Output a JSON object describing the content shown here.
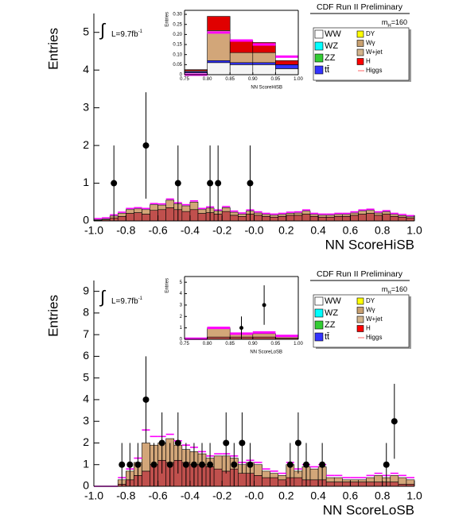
{
  "chart_data": [
    {
      "type": "histogram",
      "title": "CDF Run II Preliminary",
      "xlabel": "NN ScoreHiSB",
      "ylabel": "Entries",
      "integral": "∫",
      "lumi": {
        "text": "L=9.7fb",
        "superscript": "-1"
      },
      "mass": {
        "symbol": "m",
        "subscript": "H",
        "text": "=160"
      },
      "legend": [
        {
          "name": "WW",
          "color": "#ffffff"
        },
        {
          "name": "WZ",
          "color": "#00ffff"
        },
        {
          "name": "ZZ",
          "color": "#33cc33"
        },
        {
          "name": "tt̄",
          "color": "#3333ff"
        },
        {
          "name": "DY",
          "color": "#ffff00"
        },
        {
          "name": "Wγ",
          "color": "#c8a070"
        },
        {
          "name": "W+jet",
          "color": "#d2b48c"
        },
        {
          "name": "H",
          "color": "#ff0000"
        },
        {
          "name": "Higgs",
          "color": "#ff6666"
        }
      ],
      "bins": [
        -1.0,
        -0.95,
        -0.9,
        -0.85,
        -0.8,
        -0.75,
        -0.7,
        -0.65,
        -0.6,
        -0.55,
        -0.5,
        -0.45,
        -0.4,
        -0.35,
        -0.3,
        -0.25,
        -0.2,
        -0.15,
        -0.1,
        -0.05,
        0,
        0.05,
        0.1,
        0.15,
        0.2,
        0.25,
        0.3,
        0.35,
        0.4,
        0.45,
        0.5,
        0.55,
        0.6,
        0.65,
        0.7,
        0.75,
        0.8,
        0.85,
        0.9,
        0.95,
        1.0
      ],
      "series": [
        {
          "color": "#c0504d",
          "values": [
            0.02,
            0.03,
            0.08,
            0.12,
            0.2,
            0.22,
            0.18,
            0.28,
            0.3,
            0.35,
            0.3,
            0.25,
            0.3,
            0.2,
            0.22,
            0.18,
            0.25,
            0.15,
            0.12,
            0.18,
            0.15,
            0.12,
            0.1,
            0.12,
            0.15,
            0.15,
            0.18,
            0.12,
            0.1,
            0.1,
            0.12,
            0.12,
            0.15,
            0.18,
            0.2,
            0.15,
            0.18,
            0.12,
            0.1,
            0.08
          ]
        },
        {
          "color": "#d2a679",
          "values": [
            0.01,
            0.02,
            0.05,
            0.08,
            0.1,
            0.1,
            0.12,
            0.15,
            0.12,
            0.2,
            0.15,
            0.15,
            0.2,
            0.1,
            0.12,
            0.08,
            0.1,
            0.08,
            0.06,
            0.08,
            0.06,
            0.05,
            0.05,
            0.05,
            0.05,
            0.06,
            0.08,
            0.05,
            0.05,
            0.05,
            0.05,
            0.05,
            0.06,
            0.08,
            0.08,
            0.06,
            0.06,
            0.05,
            0.04,
            0.03
          ]
        }
      ],
      "signal": {
        "color": "#ff00ff",
        "values": [
          0.06,
          0.08,
          0.16,
          0.23,
          0.33,
          0.35,
          0.33,
          0.46,
          0.45,
          0.58,
          0.48,
          0.43,
          0.53,
          0.33,
          0.37,
          0.29,
          0.38,
          0.26,
          0.21,
          0.29,
          0.24,
          0.2,
          0.18,
          0.2,
          0.23,
          0.24,
          0.29,
          0.2,
          0.18,
          0.18,
          0.2,
          0.2,
          0.24,
          0.29,
          0.31,
          0.24,
          0.27,
          0.2,
          0.17,
          0.14
        ]
      },
      "points": {
        "x": [
          -0.875,
          -0.675,
          -0.475,
          -0.275,
          -0.225,
          -0.025
        ],
        "values": [
          1,
          2,
          1,
          1,
          1,
          1
        ],
        "errors": [
          1,
          1.41,
          1,
          1,
          1,
          1
        ]
      },
      "xlim": [
        -1,
        1
      ],
      "ylim": [
        0,
        5.5
      ],
      "xticks": [
        {
          "value": -1,
          "label": "-1.0"
        },
        -0.8,
        -0.6,
        -0.4,
        -0.2,
        {
          "value": 0,
          "label": "-0.0"
        },
        0.2,
        0.4,
        0.6,
        0.8,
        {
          "value": 1,
          "label": "1.0"
        }
      ],
      "yticks": [
        0,
        1,
        2,
        3,
        4,
        5
      ]
    },
    {
      "type": "histogram",
      "xlabel": "NN ScoreHiSB",
      "ylabel": "Entries",
      "bins": [
        0.75,
        0.8,
        0.85,
        0.9,
        0.95,
        1.0
      ],
      "series": [
        {
          "color": "#f4f4f4",
          "values": [
            0.01,
            0.06,
            0.05,
            0.05,
            0.03
          ]
        },
        {
          "color": "#3333ff",
          "values": [
            0.005,
            0.01,
            0.01,
            0.01,
            0.02
          ]
        },
        {
          "color": "#d2a679",
          "values": [
            0.005,
            0.15,
            0.05,
            0.05,
            0.0
          ]
        },
        {
          "color": "#e00000",
          "values": [
            0.005,
            0.07,
            0.06,
            0.05,
            0.02
          ]
        }
      ],
      "signal": {
        "color": "#ff00ff",
        "values": [
          0.0,
          0.21,
          0.17,
          0.15,
          0.09
        ]
      },
      "xlim": [
        0.75,
        1.0
      ],
      "ylim": [
        0,
        0.32
      ],
      "xticks": [
        0.75,
        {
          "value": 0.8,
          "label": "0.80"
        },
        0.85,
        {
          "value": 0.9,
          "label": "0.90"
        },
        0.95,
        {
          "value": 1,
          "label": "1.00"
        }
      ],
      "yticks": [
        0,
        0.05,
        {
          "value": 0.1,
          "label": "0.10"
        },
        0.15,
        {
          "value": 0.2,
          "label": "0.20"
        },
        0.25,
        {
          "value": 0.3,
          "label": "0.30"
        }
      ]
    },
    {
      "type": "histogram",
      "title": "CDF Run II Preliminary",
      "xlabel": "NN ScoreLoSB",
      "ylabel": "Entries",
      "integral": "∫",
      "lumi": {
        "text": "L=9.7fb",
        "superscript": "-1"
      },
      "mass": {
        "symbol": "m",
        "subscript": "H",
        "text": "=160"
      },
      "legend": [
        {
          "name": "WW",
          "color": "#ffffff"
        },
        {
          "name": "WZ",
          "color": "#00ffff"
        },
        {
          "name": "ZZ",
          "color": "#33cc33"
        },
        {
          "name": "tt̄",
          "color": "#3333ff"
        },
        {
          "name": "DY",
          "color": "#ffff00"
        },
        {
          "name": "Wγ",
          "color": "#c8a070"
        },
        {
          "name": "W+jet",
          "color": "#d2b48c"
        },
        {
          "name": "H",
          "color": "#ff0000"
        },
        {
          "name": "Higgs",
          "color": "#ff6666"
        }
      ],
      "bins": [
        -1.0,
        -0.95,
        -0.9,
        -0.85,
        -0.8,
        -0.75,
        -0.7,
        -0.65,
        -0.6,
        -0.55,
        -0.5,
        -0.45,
        -0.4,
        -0.35,
        -0.3,
        -0.25,
        -0.2,
        -0.15,
        -0.1,
        -0.05,
        0,
        0.05,
        0.1,
        0.15,
        0.2,
        0.25,
        0.3,
        0.35,
        0.4,
        0.45,
        0.5,
        0.55,
        0.6,
        0.65,
        0.7,
        0.75,
        0.8,
        0.85,
        0.9,
        0.95,
        1.0
      ],
      "series": [
        {
          "color": "#c0504d",
          "values": [
            0,
            0,
            0,
            0.1,
            0.3,
            0.5,
            0.7,
            1.0,
            1.2,
            1.1,
            1.2,
            1.1,
            1.0,
            1.0,
            0.9,
            0.8,
            0.7,
            0.8,
            0.6,
            0.6,
            0.5,
            0.4,
            0.4,
            0.3,
            0.4,
            0.4,
            0.3,
            0.3,
            0.3,
            0.2,
            0.2,
            0.2,
            0.2,
            0.2,
            0.2,
            0.2,
            0.2,
            0.2,
            0.1,
            0.1
          ]
        },
        {
          "color": "#d2a679",
          "values": [
            0,
            0,
            0,
            0.2,
            0.4,
            0.6,
            1.3,
            0.9,
            0.8,
            1.1,
            0.7,
            0.6,
            0.6,
            0.5,
            0.4,
            0.6,
            0.7,
            0.5,
            0.4,
            0.5,
            0.5,
            0.3,
            0.2,
            0.2,
            0.6,
            0.3,
            0.6,
            0.5,
            0.6,
            0.2,
            0.2,
            0.1,
            0.1,
            0.1,
            0.2,
            0.3,
            0.2,
            0.3,
            0.3,
            0.2
          ]
        }
      ],
      "signal": {
        "color": "#ff00ff",
        "values": [
          0,
          0,
          0,
          0.4,
          0.8,
          1.3,
          2.6,
          2.3,
          2.3,
          2.4,
          2.1,
          1.9,
          1.8,
          1.6,
          1.4,
          1.5,
          1.5,
          1.4,
          1.1,
          1.2,
          1.1,
          0.8,
          0.7,
          0.6,
          1.1,
          0.8,
          1.0,
          0.9,
          1.0,
          0.5,
          0.5,
          0.4,
          0.4,
          0.4,
          0.5,
          0.6,
          0.5,
          0.6,
          0.5,
          0.4
        ]
      },
      "points": {
        "x": [
          -0.825,
          -0.775,
          -0.725,
          -0.675,
          -0.625,
          -0.575,
          -0.525,
          -0.475,
          -0.425,
          -0.375,
          -0.325,
          -0.275,
          -0.175,
          -0.125,
          -0.075,
          -0.025,
          0.225,
          0.275,
          0.325,
          0.425,
          0.825,
          0.875
        ],
        "values": [
          1,
          1,
          1,
          4,
          1,
          2,
          1,
          2,
          1,
          1,
          1,
          1,
          2,
          1,
          2,
          1,
          1,
          2,
          1,
          1,
          1,
          3
        ],
        "errors": [
          1,
          1,
          1,
          2,
          1,
          1.41,
          1,
          1.41,
          1,
          1,
          1,
          1,
          1.41,
          1,
          1.41,
          1,
          1,
          1.41,
          1,
          1,
          1,
          1.73
        ]
      },
      "xlim": [
        -1,
        1
      ],
      "ylim": [
        0,
        9.5
      ],
      "xticks": [
        {
          "value": -1,
          "label": "-1.0"
        },
        -0.8,
        -0.6,
        -0.4,
        -0.2,
        {
          "value": 0,
          "label": "-0.0"
        },
        0.2,
        0.4,
        0.6,
        0.8,
        {
          "value": 1,
          "label": "1.0"
        }
      ],
      "yticks": [
        0,
        1,
        2,
        3,
        4,
        5,
        6,
        7,
        8,
        9
      ]
    },
    {
      "type": "histogram",
      "xlabel": "NN ScoreLoSB",
      "ylabel": "Entries",
      "bins": [
        0.75,
        0.8,
        0.85,
        0.9,
        0.95,
        1.0
      ],
      "series": [
        {
          "color": "#c0504d",
          "values": [
            0.05,
            0.2,
            0.2,
            0.2,
            0.1
          ]
        },
        {
          "color": "#d2a679",
          "values": [
            0,
            0.8,
            0.3,
            0.3,
            0.2
          ]
        }
      ],
      "signal": {
        "color": "#ff00ff",
        "values": [
          0.05,
          1.0,
          0.5,
          0.6,
          0.3
        ]
      },
      "points": {
        "x": [
          0.875,
          0.925
        ],
        "values": [
          1,
          3
        ],
        "errors": [
          1,
          1.73
        ]
      },
      "xlim": [
        0.75,
        1.0
      ],
      "ylim": [
        0,
        5.5
      ],
      "xticks": [
        0.75,
        {
          "value": 0.8,
          "label": "0.80"
        },
        0.85,
        {
          "value": 0.9,
          "label": "0.90"
        },
        0.95,
        {
          "value": 1,
          "label": "1.00"
        }
      ],
      "yticks": [
        0,
        1,
        2,
        3,
        4,
        5
      ]
    }
  ]
}
